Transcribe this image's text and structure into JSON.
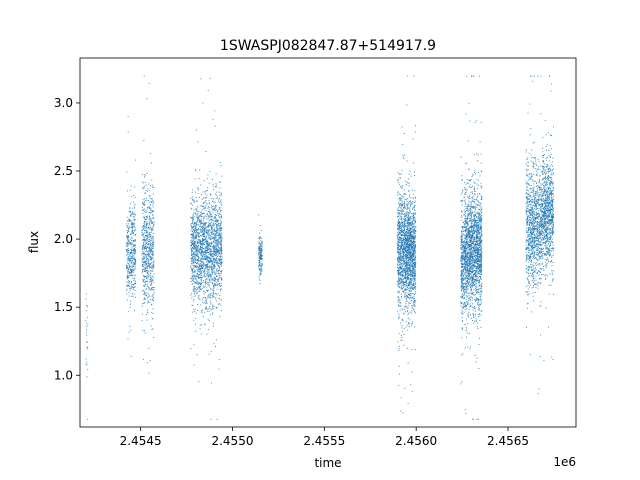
{
  "chart_data": {
    "type": "scatter",
    "title": "1SWASPJ082847.87+514917.9",
    "xlabel": "time",
    "ylabel": "flux",
    "x_offset_label": "1e6",
    "xlim": [
      2454170,
      2456870
    ],
    "ylim": [
      0.62,
      3.33
    ],
    "x_ticks": [
      2454500,
      2455000,
      2455500,
      2456000,
      2456500
    ],
    "x_tick_labels": [
      "2.4545",
      "2.4550",
      "2.4555",
      "2.4560",
      "2.4565"
    ],
    "y_ticks": [
      1.0,
      1.5,
      2.0,
      2.5,
      3.0
    ],
    "y_tick_labels": [
      "1.0",
      "1.5",
      "2.0",
      "2.5",
      "3.0"
    ],
    "grid": false,
    "legend": "none",
    "point_color": "#1f77b4",
    "series": [
      {
        "clusters": [
          {
            "x_range": [
              2454195,
              2454210
            ],
            "y_center": 1.35,
            "y_spread": 0.15,
            "count": 25
          },
          {
            "x_range": [
              2454420,
              2454470
            ],
            "y_center": 1.9,
            "y_spread": 0.18,
            "count": 420
          },
          {
            "x_range": [
              2454505,
              2454570
            ],
            "y_center": 1.92,
            "y_spread": 0.22,
            "count": 650
          },
          {
            "x_range": [
              2454770,
              2454940
            ],
            "y_center": 1.93,
            "y_spread": 0.2,
            "count": 1900
          },
          {
            "x_range": [
              2455140,
              2455160
            ],
            "y_center": 1.88,
            "y_spread": 0.08,
            "count": 150
          },
          {
            "x_range": [
              2455895,
              2455930
            ],
            "y_center": 1.92,
            "y_spread": 0.22,
            "count": 600
          },
          {
            "x_range": [
              2455930,
              2455995
            ],
            "y_center": 1.9,
            "y_spread": 0.2,
            "count": 1300
          },
          {
            "x_range": [
              2456240,
              2456260
            ],
            "y_center": 1.85,
            "y_spread": 0.2,
            "count": 300
          },
          {
            "x_range": [
              2456260,
              2456355
            ],
            "y_center": 1.92,
            "y_spread": 0.22,
            "count": 1800
          },
          {
            "x_range": [
              2456595,
              2456680
            ],
            "y_center": 2.08,
            "y_spread": 0.22,
            "count": 1000
          },
          {
            "x_range": [
              2456680,
              2456745
            ],
            "y_center": 2.2,
            "y_spread": 0.2,
            "count": 900
          }
        ]
      }
    ]
  }
}
